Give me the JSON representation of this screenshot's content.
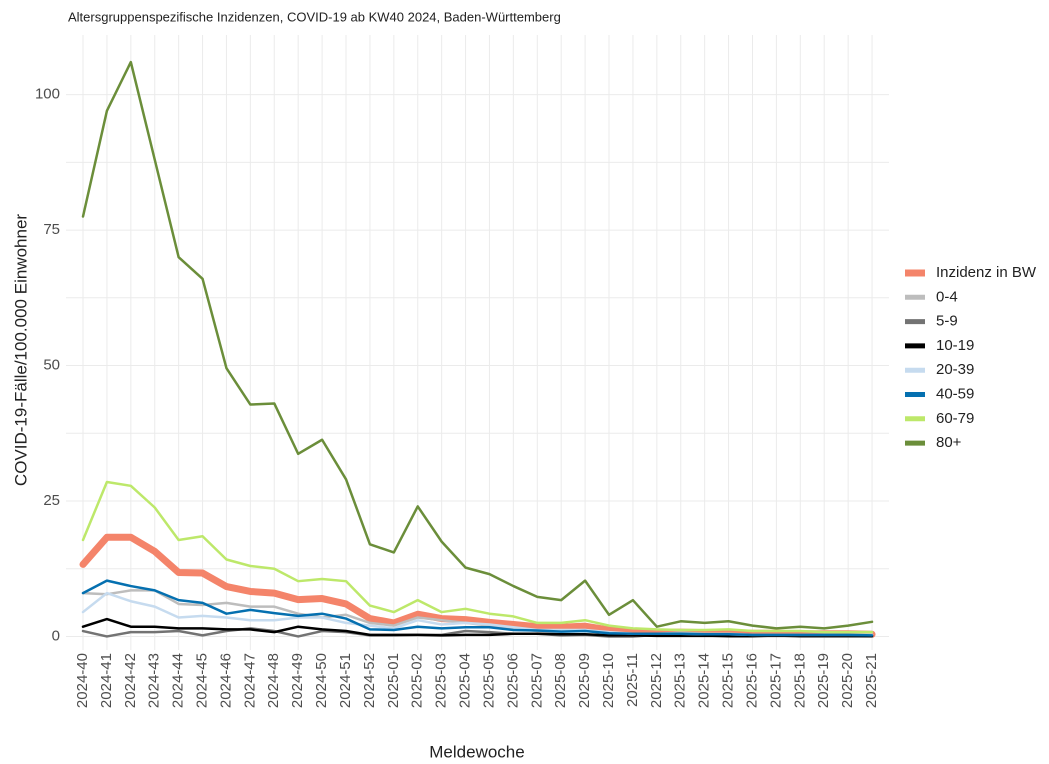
{
  "chart_data": {
    "type": "line",
    "title": "Altersgruppenspezifische Inzidenzen, COVID-19 ab KW40 2024, Baden-Württemberg",
    "x_label": "Meldewoche",
    "y_label": "COVID-19-Fälle/100.000 Einwohner",
    "categories": [
      "2024-40",
      "2024-41",
      "2024-42",
      "2024-43",
      "2024-44",
      "2024-45",
      "2024-46",
      "2024-47",
      "2024-48",
      "2024-49",
      "2024-50",
      "2024-51",
      "2024-52",
      "2025-01",
      "2025-02",
      "2025-03",
      "2025-04",
      "2025-05",
      "2025-06",
      "2025-07",
      "2025-08",
      "2025-09",
      "2025-10",
      "2025-11",
      "2025-12",
      "2025-13",
      "2025-14",
      "2025-15",
      "2025-16",
      "2025-17",
      "2025-18",
      "2025-19",
      "2025-20",
      "2025-21"
    ],
    "ylim": [
      -2.5,
      111
    ],
    "yticks": [
      0,
      25,
      50,
      75,
      100
    ],
    "grid": true,
    "legend": "right",
    "series": [
      {
        "name": "Inzidenz in BW",
        "color": "#f4846a",
        "width": 7,
        "values": [
          13.3,
          18.3,
          18.3,
          15.7,
          11.8,
          11.7,
          9.2,
          8.3,
          8,
          6.8,
          7,
          6,
          3.3,
          2.5,
          4.1,
          3.3,
          3.1,
          2.6,
          2.2,
          1.8,
          1.7,
          1.9,
          1.2,
          1,
          0.8,
          0.8,
          0.7,
          0.7,
          0.6,
          0.6,
          0.5,
          0.5,
          0.5,
          0.4
        ]
      },
      {
        "name": "0-4",
        "color": "#bdbdbd",
        "width": 2.5,
        "values": [
          8,
          7.8,
          8.5,
          8.5,
          6,
          5.8,
          6.2,
          5.5,
          5.5,
          4.2,
          3.5,
          4,
          2.5,
          2,
          3.5,
          3,
          2.5,
          2,
          1.5,
          1,
          1,
          1.2,
          0.5,
          0.5,
          0.5,
          0.7,
          0.5,
          0.5,
          0.3,
          0.3,
          0.3,
          0.3,
          0.3,
          0.3
        ]
      },
      {
        "name": "5-9",
        "color": "#737373",
        "width": 2.5,
        "values": [
          1,
          0,
          0.8,
          0.8,
          1,
          0.2,
          1,
          1.5,
          1,
          0,
          1,
          0.8,
          0.2,
          0.2,
          0.3,
          0.3,
          1,
          0.8,
          0.5,
          0.5,
          0.2,
          0.3,
          0,
          0,
          0.3,
          0.2,
          0.2,
          0,
          0,
          0.2,
          0,
          0,
          0,
          0
        ]
      },
      {
        "name": "10-19",
        "color": "#000000",
        "width": 2.5,
        "values": [
          1.8,
          3.2,
          1.8,
          1.8,
          1.5,
          1.5,
          1.3,
          1.3,
          0.8,
          1.8,
          1.3,
          1,
          0.3,
          0.3,
          0.3,
          0.2,
          0.3,
          0.3,
          0.5,
          0.5,
          0.4,
          0.4,
          0.2,
          0.2,
          0.1,
          0.1,
          0.1,
          0.1,
          0.1,
          0.1,
          0.1,
          0.1,
          0.1,
          0.1
        ]
      },
      {
        "name": "20-39",
        "color": "#c6dbef",
        "width": 2.5,
        "values": [
          4.5,
          8,
          6.5,
          5.5,
          3.5,
          3.8,
          3.5,
          3,
          3,
          3.5,
          3.5,
          2.5,
          2,
          1.5,
          3,
          2.2,
          2.5,
          2.2,
          1.7,
          1.2,
          1.2,
          1.2,
          0.8,
          0.5,
          0.5,
          0.5,
          0.4,
          0.4,
          0.3,
          0.3,
          0.3,
          0.3,
          0.3,
          0.3
        ]
      },
      {
        "name": "40-59",
        "color": "#0570b0",
        "width": 2.5,
        "values": [
          8,
          10.3,
          9.3,
          8.5,
          6.7,
          6.2,
          4.2,
          4.9,
          4.3,
          3.8,
          4.2,
          3.3,
          1.3,
          1.2,
          1.8,
          1.5,
          1.7,
          1.7,
          1.2,
          1.1,
          0.9,
          1,
          0.6,
          0.5,
          0.5,
          0.5,
          0.4,
          0.4,
          0.3,
          0.3,
          0.3,
          0.3,
          0.3,
          0.2
        ]
      },
      {
        "name": "60-79",
        "color": "#bde86a",
        "width": 2.5,
        "values": [
          17.8,
          28.5,
          27.8,
          23.8,
          17.8,
          18.5,
          14.2,
          13,
          12.5,
          10.2,
          10.6,
          10.2,
          5.7,
          4.5,
          6.7,
          4.5,
          5.1,
          4.2,
          3.7,
          2.5,
          2.5,
          3,
          2,
          1.5,
          1.3,
          1.2,
          1.2,
          1.3,
          1,
          1,
          1,
          0.8,
          0.8,
          0.8
        ]
      },
      {
        "name": "80+",
        "color": "#6b8e3a",
        "width": 2.5,
        "values": [
          77.5,
          97,
          106,
          88,
          70,
          66,
          49.5,
          42.8,
          43,
          33.7,
          36.3,
          29,
          17,
          15.5,
          24,
          17.5,
          12.7,
          11.5,
          9.3,
          7.3,
          6.7,
          10.3,
          4,
          6.7,
          1.8,
          2.8,
          2.5,
          2.8,
          2,
          1.5,
          1.8,
          1.5,
          2,
          2.7
        ]
      }
    ]
  }
}
